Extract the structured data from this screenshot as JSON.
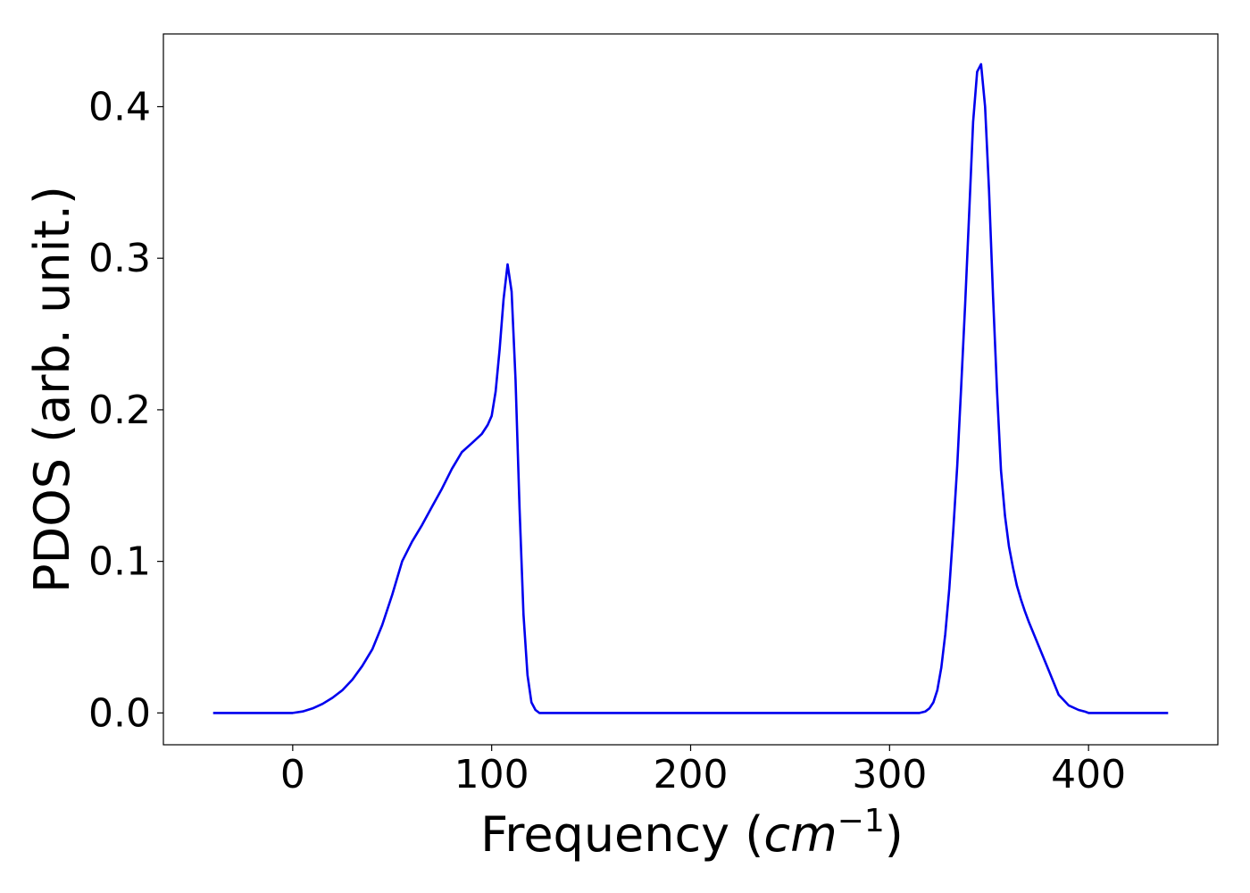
{
  "chart_data": {
    "type": "line",
    "title": "",
    "xlabel_prefix": "Frequency (",
    "xlabel_math_base": "cm",
    "xlabel_math_sup": "−1",
    "xlabel_suffix": ")",
    "ylabel": "PDOS (arb. unit.)",
    "xlim": [
      -65,
      465
    ],
    "ylim": [
      -0.021,
      0.448
    ],
    "xticks": [
      0,
      100,
      200,
      300,
      400
    ],
    "xtick_labels": [
      "0",
      "100",
      "200",
      "300",
      "400"
    ],
    "yticks": [
      0.0,
      0.1,
      0.2,
      0.3,
      0.4
    ],
    "ytick_labels": [
      "0.0",
      "0.1",
      "0.2",
      "0.3",
      "0.4"
    ],
    "grid": false,
    "legend": "none",
    "series": [
      {
        "color": "#0000ee",
        "x": [
          -40,
          -20,
          0,
          5,
          10,
          15,
          20,
          25,
          30,
          35,
          40,
          45,
          50,
          55,
          60,
          65,
          70,
          75,
          80,
          85,
          90,
          95,
          98,
          100,
          102,
          104,
          106,
          108,
          110,
          112,
          114,
          116,
          118,
          120,
          122,
          124,
          126,
          128,
          130,
          135,
          150,
          200,
          250,
          300,
          315,
          318,
          320,
          322,
          324,
          326,
          328,
          330,
          332,
          334,
          336,
          338,
          340,
          342,
          344,
          346,
          348,
          350,
          352,
          354,
          356,
          358,
          360,
          362,
          364,
          366,
          368,
          370,
          375,
          380,
          385,
          390,
          395,
          398,
          400,
          402,
          404,
          406,
          408,
          410,
          420,
          440
        ],
        "y": [
          0.0,
          0.0,
          0.0,
          0.001,
          0.003,
          0.006,
          0.01,
          0.015,
          0.022,
          0.031,
          0.042,
          0.058,
          0.078,
          0.1,
          0.113,
          0.124,
          0.136,
          0.148,
          0.161,
          0.172,
          0.178,
          0.184,
          0.19,
          0.196,
          0.212,
          0.24,
          0.273,
          0.296,
          0.278,
          0.22,
          0.135,
          0.065,
          0.025,
          0.007,
          0.002,
          0.0,
          0.0,
          0.0,
          0.0,
          0.0,
          0.0,
          0.0,
          0.0,
          0.0,
          0.0,
          0.001,
          0.003,
          0.007,
          0.015,
          0.03,
          0.052,
          0.082,
          0.12,
          0.163,
          0.215,
          0.27,
          0.33,
          0.39,
          0.423,
          0.428,
          0.4,
          0.345,
          0.275,
          0.212,
          0.16,
          0.13,
          0.11,
          0.096,
          0.084,
          0.075,
          0.067,
          0.06,
          0.044,
          0.028,
          0.012,
          0.005,
          0.002,
          0.001,
          0.0,
          0.0,
          0.0,
          0.0,
          0.0,
          0.0,
          0.0,
          0.0
        ]
      }
    ]
  }
}
